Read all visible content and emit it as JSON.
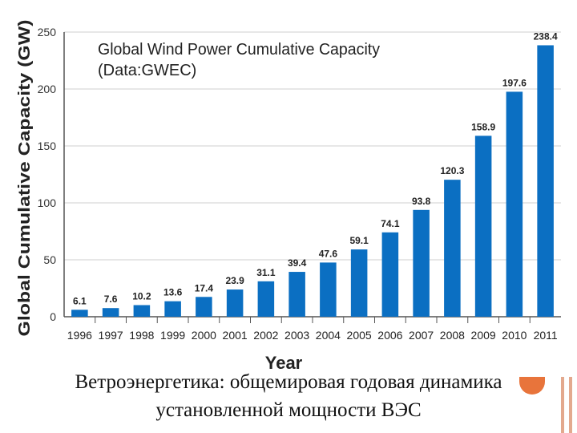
{
  "chart_data": {
    "type": "bar",
    "title": "Global Wind Power Cumulative Capacity",
    "subtitle": "(Data:GWEC)",
    "xlabel": "Year",
    "ylabel": "Global Cumulative Capacity (GW)",
    "ylim": [
      0,
      250
    ],
    "yticks": [
      0,
      50,
      100,
      150,
      200,
      250
    ],
    "grid": true,
    "categories": [
      "1996",
      "1997",
      "1998",
      "1999",
      "2000",
      "2001",
      "2002",
      "2003",
      "2004",
      "2005",
      "2006",
      "2007",
      "2008",
      "2009",
      "2010",
      "2011"
    ],
    "values": [
      6.1,
      7.6,
      10.2,
      13.6,
      17.4,
      23.9,
      31.1,
      39.4,
      47.6,
      59.1,
      74.1,
      93.8,
      120.3,
      158.9,
      197.6,
      238.4
    ],
    "value_labels": [
      "6.1",
      "7.6",
      "10.2",
      "13.6",
      "17.4",
      "23.9",
      "31.1",
      "39.4",
      "47.6",
      "59.1",
      "74.1",
      "93.8",
      "120.3",
      "158.9",
      "197.6",
      "238.4"
    ],
    "bar_color": "#0b6fc2"
  },
  "caption": {
    "line1": "Ветроэнергетика: общемировая годовая динамика",
    "line2": "установленной мощности ВЭС"
  }
}
